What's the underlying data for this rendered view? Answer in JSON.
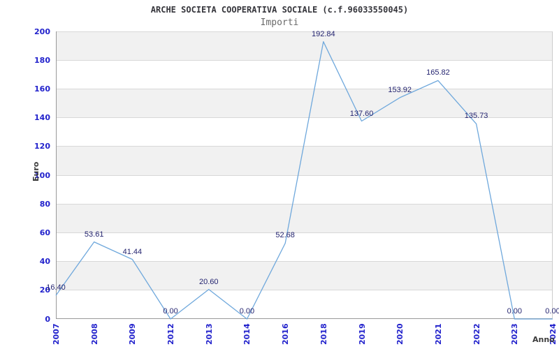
{
  "header": {
    "title": "ARCHE SOCIETA COOPERATIVA SOCIALE (c.f.96033550045)",
    "subtitle": "Importi"
  },
  "chart_data": {
    "type": "line",
    "title": "ARCHE SOCIETA COOPERATIVA SOCIALE (c.f.96033550045)",
    "subtitle": "Importi",
    "xlabel": "Anno",
    "ylabel": "Euro",
    "categories": [
      "2007",
      "2008",
      "2009",
      "2012",
      "2013",
      "2014",
      "2016",
      "2018",
      "2019",
      "2020",
      "2021",
      "2022",
      "2023",
      "2024"
    ],
    "values": [
      16.4,
      53.61,
      41.44,
      0.0,
      20.6,
      0.0,
      52.68,
      192.84,
      137.6,
      153.92,
      165.82,
      135.73,
      0.0,
      0.0
    ],
    "point_labels": [
      "16.40",
      "53.61",
      "41.44",
      "0.00",
      "20.60",
      "0.00",
      "52.68",
      "192.84",
      "137.60",
      "153.92",
      "165.82",
      "135.73",
      "0.00",
      "0.00"
    ],
    "ylim": [
      0,
      200
    ],
    "ytick_step": 20,
    "grid": "horizontal-bands",
    "legend": "none",
    "colors": {
      "line": "#6fa8dc",
      "tick_label": "#2222cc",
      "point_label": "#242470",
      "title": "#35353b",
      "subtitle": "#6a6a6a",
      "axis_title": "#3b3b3b",
      "band": "#f1f1f1",
      "grid_line": "#d8d8d8",
      "axis_line": "#999999",
      "plot_border": "#cccccc",
      "background": "#ffffff"
    }
  }
}
